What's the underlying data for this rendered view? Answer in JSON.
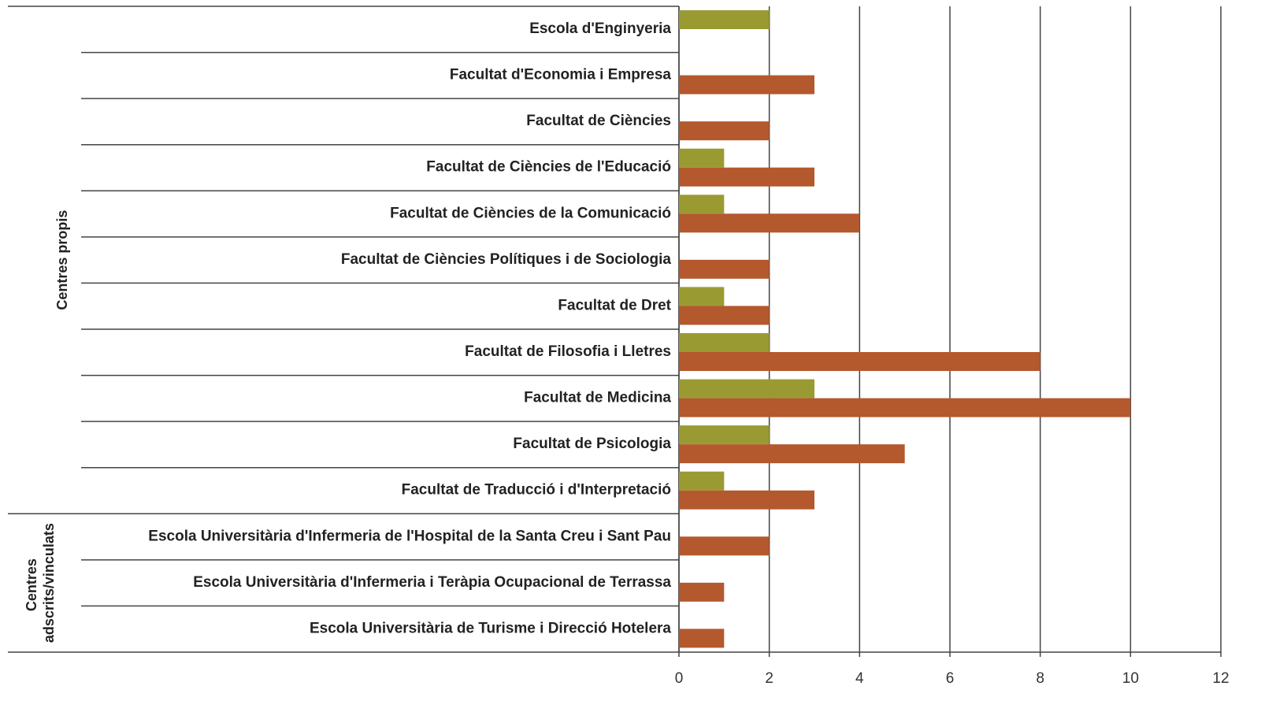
{
  "chart_data": {
    "type": "bar",
    "orientation": "horizontal",
    "categories": [
      "Escola d'Enginyeria",
      "Facultat d'Economia i Empresa",
      "Facultat de Ciències",
      "Facultat de Ciències de l'Educació",
      "Facultat de Ciències de la Comunicació",
      "Facultat de Ciències Polítiques i de Sociologia",
      "Facultat de Dret",
      "Facultat de Filosofia i Lletres",
      "Facultat de Medicina",
      "Facultat de Psicologia",
      "Facultat de Traducció i d'Interpretació",
      "Escola Universitària d'Infermeria de l'Hospital de la Santa Creu i Sant Pau",
      "Escola Universitària d'Infermeria i Teràpia Ocupacional de Terrassa",
      "Escola Universitària de Turisme i Direcció Hotelera"
    ],
    "groups": [
      {
        "label": "Centres propis",
        "size": 11
      },
      {
        "label": "Centres adscrits/vinculats",
        "size": 3
      }
    ],
    "series": [
      {
        "color": "#9a9a32",
        "values": [
          2,
          null,
          null,
          1,
          1,
          null,
          1,
          2,
          3,
          2,
          1,
          null,
          null,
          null
        ]
      },
      {
        "color": "#b4582e",
        "values": [
          null,
          3,
          2,
          3,
          4,
          2,
          2,
          8,
          10,
          5,
          3,
          2,
          1,
          1
        ]
      }
    ],
    "xlim": [
      0,
      12
    ],
    "xticks": [
      0,
      2,
      4,
      6,
      8,
      10,
      12
    ],
    "grid": true
  }
}
